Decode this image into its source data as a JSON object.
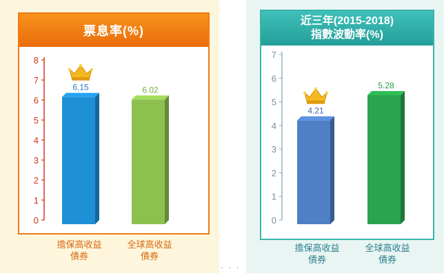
{
  "chart_data": [
    {
      "type": "bar",
      "title": "票息率(%)",
      "categories": [
        "擔保高收益債券",
        "全球高收益債券"
      ],
      "category_lines": [
        [
          "擔保高收益",
          "債券"
        ],
        [
          "全球高收益",
          "債券"
        ]
      ],
      "values": [
        6.15,
        6.02
      ],
      "value_labels": [
        "6.15",
        "6.02"
      ],
      "colors": [
        "#1f8fd6",
        "#8dc04f"
      ],
      "label_colors": [
        "#1f7fc4",
        "#7cab3f"
      ],
      "ylim": [
        0,
        8
      ],
      "yticks": [
        "0",
        "1",
        "2",
        "3",
        "4",
        "5",
        "6",
        "7",
        "8"
      ],
      "axis_color": "#d23a1e",
      "crown_on": "擔保高收益債券"
    },
    {
      "type": "bar",
      "title_lines": [
        "近三年(2015-2018)",
        "指數波動率(%)"
      ],
      "categories": [
        "擔保高收益債券",
        "全球高收益債券"
      ],
      "category_lines": [
        [
          "擔保高收益",
          "債券"
        ],
        [
          "全球高收益",
          "債券"
        ]
      ],
      "values": [
        4.21,
        5.28
      ],
      "value_labels": [
        "4.21",
        "5.28"
      ],
      "colors": [
        "#4f7fc4",
        "#2aa54d"
      ],
      "label_colors": [
        "#3c6ab0",
        "#2a9a4a"
      ],
      "ylim": [
        0,
        7
      ],
      "yticks": [
        "0",
        "1",
        "2",
        "3",
        "4",
        "5",
        "6",
        "7"
      ],
      "axis_color": "#8fb7c4",
      "crown_on": "擔保高收益債券"
    }
  ],
  "footer": {
    "ellipsis": "· · ·"
  }
}
